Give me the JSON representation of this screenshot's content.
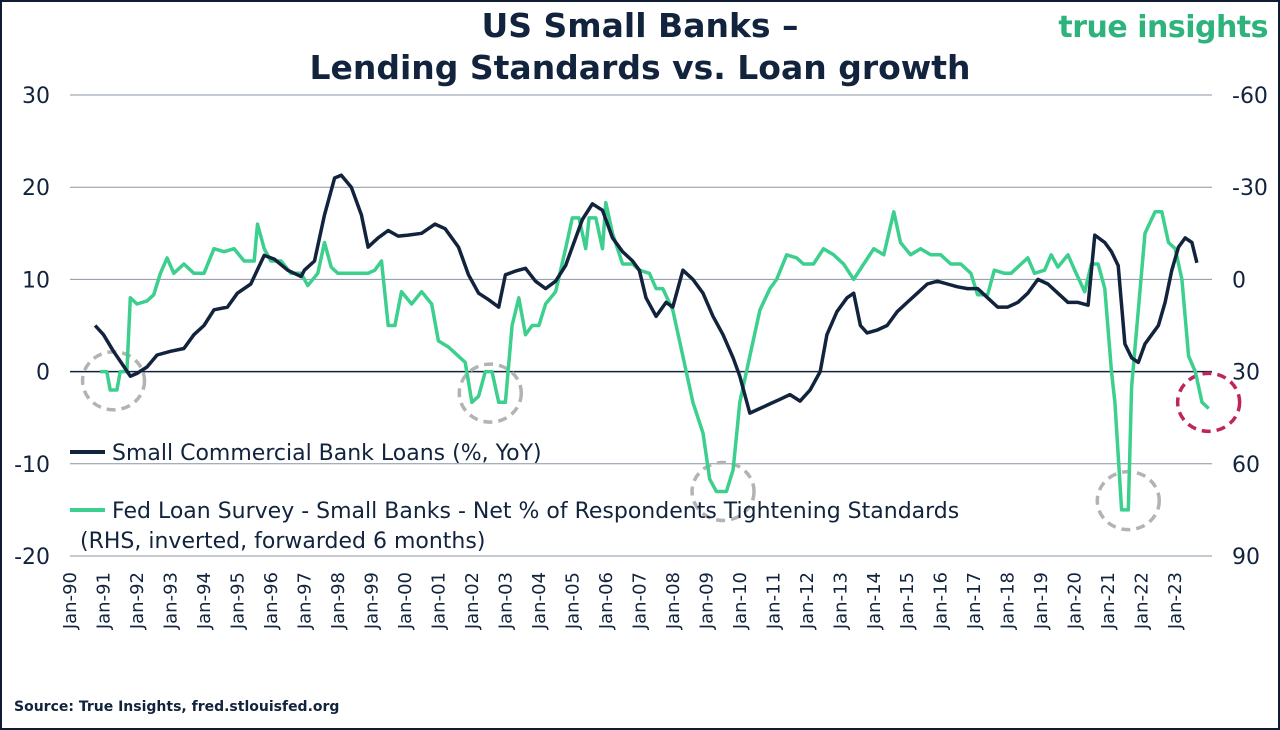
{
  "chart_data": {
    "type": "line",
    "title": "US Small Banks –",
    "subtitle": "Lending Standards vs. Loan growth",
    "brand": "true insights",
    "source": "Source: True Insights, fred.stlouisfed.org",
    "colors": {
      "loans": "#12233d",
      "survey": "#3ccf8e",
      "grid": "#8a94a6",
      "highlight_gray": "#b3b3b3",
      "highlight_red": "#c0245c"
    },
    "y_left": {
      "ticks": [
        30,
        20,
        10,
        0,
        -10,
        -20
      ],
      "range": [
        -20,
        30
      ]
    },
    "y_right": {
      "ticks": [
        -60,
        -30,
        0,
        30,
        60,
        90
      ],
      "range": [
        90,
        -60
      ],
      "inverted": true
    },
    "x_tick_labels": [
      "Jan-90",
      "Jan-91",
      "Jan-92",
      "Jan-93",
      "Jan-94",
      "Jan-95",
      "Jan-96",
      "Jan-97",
      "Jan-98",
      "Jan-99",
      "Jan-00",
      "Jan-01",
      "Jan-02",
      "Jan-03",
      "Jan-04",
      "Jan-05",
      "Jan-06",
      "Jan-07",
      "Jan-08",
      "Jan-09",
      "Jan-10",
      "Jan-11",
      "Jan-12",
      "Jan-13",
      "Jan-14",
      "Jan-15",
      "Jan-16",
      "Jan-17",
      "Jan-18",
      "Jan-19",
      "Jan-20",
      "Jan-21",
      "Jan-22",
      "Jan-23"
    ],
    "x_range": [
      1990.0,
      2024.1
    ],
    "legend": {
      "loans": "Small Commercial Bank Loans (%, YoY)",
      "survey_line1": "Fed Loan Survey - Small Banks - Net % of Respondents Tightening Standards",
      "survey_line2": "(RHS, inverted, forwarded 6 months)"
    },
    "series": [
      {
        "name": "Small Commercial Bank Loans (%, YoY)",
        "axis": "left",
        "points": [
          [
            1990.75,
            5.0
          ],
          [
            1991.0,
            4.0
          ],
          [
            1991.3,
            2.2
          ],
          [
            1991.6,
            0.6
          ],
          [
            1991.8,
            -0.5
          ],
          [
            1992.0,
            -0.2
          ],
          [
            1992.3,
            0.5
          ],
          [
            1992.6,
            1.8
          ],
          [
            1993.0,
            2.2
          ],
          [
            1993.4,
            2.5
          ],
          [
            1993.7,
            4.0
          ],
          [
            1994.0,
            5.0
          ],
          [
            1994.3,
            6.7
          ],
          [
            1994.7,
            7.0
          ],
          [
            1995.0,
            8.5
          ],
          [
            1995.4,
            9.5
          ],
          [
            1995.8,
            12.6
          ],
          [
            1996.1,
            12.2
          ],
          [
            1996.5,
            11.0
          ],
          [
            1996.9,
            10.3
          ],
          [
            1997.0,
            11.0
          ],
          [
            1997.3,
            12.0
          ],
          [
            1997.6,
            17.0
          ],
          [
            1997.9,
            21.0
          ],
          [
            1998.1,
            21.3
          ],
          [
            1998.4,
            20.0
          ],
          [
            1998.7,
            17.0
          ],
          [
            1998.9,
            13.5
          ],
          [
            1999.2,
            14.5
          ],
          [
            1999.5,
            15.3
          ],
          [
            1999.8,
            14.7
          ],
          [
            2000.1,
            14.8
          ],
          [
            2000.5,
            15.0
          ],
          [
            2000.9,
            16.0
          ],
          [
            2001.2,
            15.5
          ],
          [
            2001.6,
            13.5
          ],
          [
            2001.9,
            10.5
          ],
          [
            2002.2,
            8.5
          ],
          [
            2002.5,
            7.8
          ],
          [
            2002.8,
            7.0
          ],
          [
            2003.0,
            10.5
          ],
          [
            2003.3,
            10.9
          ],
          [
            2003.6,
            11.2
          ],
          [
            2003.9,
            9.8
          ],
          [
            2004.2,
            9.0
          ],
          [
            2004.5,
            9.8
          ],
          [
            2004.8,
            11.5
          ],
          [
            2005.0,
            13.5
          ],
          [
            2005.3,
            16.5
          ],
          [
            2005.6,
            18.2
          ],
          [
            2005.9,
            17.5
          ],
          [
            2006.2,
            14.5
          ],
          [
            2006.5,
            13.0
          ],
          [
            2006.8,
            12.0
          ],
          [
            2007.0,
            11.0
          ],
          [
            2007.2,
            8.0
          ],
          [
            2007.5,
            6.0
          ],
          [
            2007.8,
            7.5
          ],
          [
            2008.0,
            7.0
          ],
          [
            2008.3,
            11.0
          ],
          [
            2008.6,
            10.0
          ],
          [
            2008.9,
            8.5
          ],
          [
            2009.2,
            6.0
          ],
          [
            2009.5,
            4.0
          ],
          [
            2009.8,
            1.5
          ],
          [
            2010.0,
            -0.5
          ],
          [
            2010.3,
            -4.5
          ],
          [
            2010.6,
            -4.0
          ],
          [
            2010.9,
            -3.5
          ],
          [
            2011.2,
            -3.0
          ],
          [
            2011.5,
            -2.5
          ],
          [
            2011.8,
            -3.2
          ],
          [
            2012.1,
            -2.0
          ],
          [
            2012.4,
            0.0
          ],
          [
            2012.6,
            4.0
          ],
          [
            2012.9,
            6.5
          ],
          [
            2013.2,
            8.0
          ],
          [
            2013.4,
            8.5
          ],
          [
            2013.6,
            5.0
          ],
          [
            2013.8,
            4.2
          ],
          [
            2014.1,
            4.5
          ],
          [
            2014.4,
            5.0
          ],
          [
            2014.7,
            6.5
          ],
          [
            2015.0,
            7.5
          ],
          [
            2015.3,
            8.5
          ],
          [
            2015.6,
            9.5
          ],
          [
            2015.9,
            9.8
          ],
          [
            2016.2,
            9.5
          ],
          [
            2016.5,
            9.2
          ],
          [
            2016.8,
            9.0
          ],
          [
            2017.1,
            9.0
          ],
          [
            2017.4,
            8.0
          ],
          [
            2017.7,
            7.0
          ],
          [
            2018.0,
            7.0
          ],
          [
            2018.3,
            7.5
          ],
          [
            2018.6,
            8.5
          ],
          [
            2018.9,
            10.0
          ],
          [
            2019.2,
            9.5
          ],
          [
            2019.5,
            8.5
          ],
          [
            2019.8,
            7.5
          ],
          [
            2020.1,
            7.5
          ],
          [
            2020.4,
            7.2
          ],
          [
            2020.6,
            14.8
          ],
          [
            2020.9,
            14.0
          ],
          [
            2021.1,
            13.0
          ],
          [
            2021.3,
            11.5
          ],
          [
            2021.5,
            3.0
          ],
          [
            2021.7,
            1.5
          ],
          [
            2021.9,
            1.0
          ],
          [
            2022.1,
            3.0
          ],
          [
            2022.3,
            4.0
          ],
          [
            2022.5,
            5.0
          ],
          [
            2022.7,
            7.5
          ],
          [
            2022.9,
            11.0
          ],
          [
            2023.1,
            13.5
          ],
          [
            2023.3,
            14.5
          ],
          [
            2023.5,
            14.0
          ],
          [
            2023.65,
            11.8
          ]
        ]
      },
      {
        "name": "Fed Loan Survey - Small Banks - Net % of Respondents Tightening Standards",
        "axis": "right",
        "points": [
          [
            1990.9,
            30.0
          ],
          [
            1991.1,
            30.0
          ],
          [
            1991.2,
            36.0
          ],
          [
            1991.4,
            36.0
          ],
          [
            1991.5,
            30.0
          ],
          [
            1991.7,
            30.0
          ],
          [
            1991.8,
            6.0
          ],
          [
            1992.0,
            8.0
          ],
          [
            1992.3,
            7.0
          ],
          [
            1992.5,
            5.0
          ],
          [
            1992.7,
            -2.0
          ],
          [
            1992.9,
            -7.0
          ],
          [
            1993.1,
            -2.0
          ],
          [
            1993.4,
            -5.0
          ],
          [
            1993.7,
            -2.0
          ],
          [
            1994.0,
            -2.0
          ],
          [
            1994.3,
            -10.0
          ],
          [
            1994.6,
            -9.0
          ],
          [
            1994.9,
            -10.0
          ],
          [
            1995.2,
            -6.0
          ],
          [
            1995.5,
            -6.0
          ],
          [
            1995.6,
            -18.0
          ],
          [
            1995.8,
            -10.0
          ],
          [
            1996.0,
            -6.0
          ],
          [
            1996.3,
            -6.0
          ],
          [
            1996.6,
            -2.0
          ],
          [
            1996.9,
            -2.0
          ],
          [
            1997.1,
            2.0
          ],
          [
            1997.4,
            -2.0
          ],
          [
            1997.6,
            -12.0
          ],
          [
            1997.8,
            -4.0
          ],
          [
            1998.0,
            -2.0
          ],
          [
            1998.3,
            -2.0
          ],
          [
            1998.6,
            -2.0
          ],
          [
            1998.9,
            -2.0
          ],
          [
            1999.1,
            -3.0
          ],
          [
            1999.3,
            -6.0
          ],
          [
            1999.5,
            15.0
          ],
          [
            1999.7,
            15.0
          ],
          [
            1999.9,
            4.0
          ],
          [
            2000.2,
            8.0
          ],
          [
            2000.5,
            4.0
          ],
          [
            2000.8,
            8.0
          ],
          [
            2001.0,
            20.0
          ],
          [
            2001.3,
            22.0
          ],
          [
            2001.6,
            25.0
          ],
          [
            2001.8,
            27.0
          ],
          [
            2002.0,
            40.0
          ],
          [
            2002.2,
            38.0
          ],
          [
            2002.4,
            30.0
          ],
          [
            2002.6,
            30.0
          ],
          [
            2002.8,
            40.0
          ],
          [
            2003.0,
            40.0
          ],
          [
            2003.2,
            15.0
          ],
          [
            2003.4,
            6.0
          ],
          [
            2003.6,
            18.0
          ],
          [
            2003.8,
            15.0
          ],
          [
            2004.0,
            15.0
          ],
          [
            2004.2,
            8.0
          ],
          [
            2004.5,
            4.0
          ],
          [
            2004.8,
            -10.0
          ],
          [
            2005.0,
            -20.0
          ],
          [
            2005.2,
            -20.0
          ],
          [
            2005.4,
            -10.0
          ],
          [
            2005.5,
            -20.0
          ],
          [
            2005.7,
            -20.0
          ],
          [
            2005.9,
            -10.0
          ],
          [
            2006.0,
            -25.0
          ],
          [
            2006.2,
            -15.0
          ],
          [
            2006.5,
            -5.0
          ],
          [
            2006.8,
            -5.0
          ],
          [
            2007.0,
            -3.0
          ],
          [
            2007.3,
            -2.0
          ],
          [
            2007.5,
            3.0
          ],
          [
            2007.7,
            3.0
          ],
          [
            2008.0,
            10.0
          ],
          [
            2008.3,
            25.0
          ],
          [
            2008.6,
            40.0
          ],
          [
            2008.9,
            50.0
          ],
          [
            2009.1,
            65.0
          ],
          [
            2009.3,
            69.0
          ],
          [
            2009.6,
            69.0
          ],
          [
            2009.8,
            62.0
          ],
          [
            2010.0,
            40.0
          ],
          [
            2010.3,
            25.0
          ],
          [
            2010.6,
            10.0
          ],
          [
            2010.9,
            3.0
          ],
          [
            2011.1,
            0.0
          ],
          [
            2011.4,
            -8.0
          ],
          [
            2011.7,
            -7.0
          ],
          [
            2011.9,
            -5.0
          ],
          [
            2012.2,
            -5.0
          ],
          [
            2012.5,
            -10.0
          ],
          [
            2012.8,
            -8.0
          ],
          [
            2013.1,
            -5.0
          ],
          [
            2013.4,
            0.0
          ],
          [
            2013.7,
            -5.0
          ],
          [
            2014.0,
            -10.0
          ],
          [
            2014.3,
            -8.0
          ],
          [
            2014.6,
            -22.0
          ],
          [
            2014.8,
            -12.0
          ],
          [
            2015.1,
            -8.0
          ],
          [
            2015.4,
            -10.0
          ],
          [
            2015.7,
            -8.0
          ],
          [
            2016.0,
            -8.0
          ],
          [
            2016.3,
            -5.0
          ],
          [
            2016.6,
            -5.0
          ],
          [
            2016.9,
            -2.0
          ],
          [
            2017.1,
            5.0
          ],
          [
            2017.4,
            5.0
          ],
          [
            2017.6,
            -3.0
          ],
          [
            2017.9,
            -2.0
          ],
          [
            2018.1,
            -2.0
          ],
          [
            2018.4,
            -5.0
          ],
          [
            2018.6,
            -7.0
          ],
          [
            2018.8,
            -2.0
          ],
          [
            2019.1,
            -3.0
          ],
          [
            2019.3,
            -8.0
          ],
          [
            2019.5,
            -4.0
          ],
          [
            2019.8,
            -8.0
          ],
          [
            2020.0,
            -3.0
          ],
          [
            2020.3,
            4.0
          ],
          [
            2020.5,
            -5.0
          ],
          [
            2020.7,
            -5.0
          ],
          [
            2020.9,
            3.0
          ],
          [
            2021.1,
            30.0
          ],
          [
            2021.2,
            40.0
          ],
          [
            2021.4,
            75.0
          ],
          [
            2021.6,
            75.0
          ],
          [
            2021.7,
            35.0
          ],
          [
            2021.9,
            10.0
          ],
          [
            2022.1,
            -15.0
          ],
          [
            2022.4,
            -22.0
          ],
          [
            2022.6,
            -22.0
          ],
          [
            2022.8,
            -12.0
          ],
          [
            2023.0,
            -10.0
          ],
          [
            2023.2,
            0.0
          ],
          [
            2023.4,
            25.0
          ],
          [
            2023.6,
            30.0
          ],
          [
            2023.8,
            40.0
          ],
          [
            2024.0,
            42.0
          ]
        ]
      }
    ]
  }
}
